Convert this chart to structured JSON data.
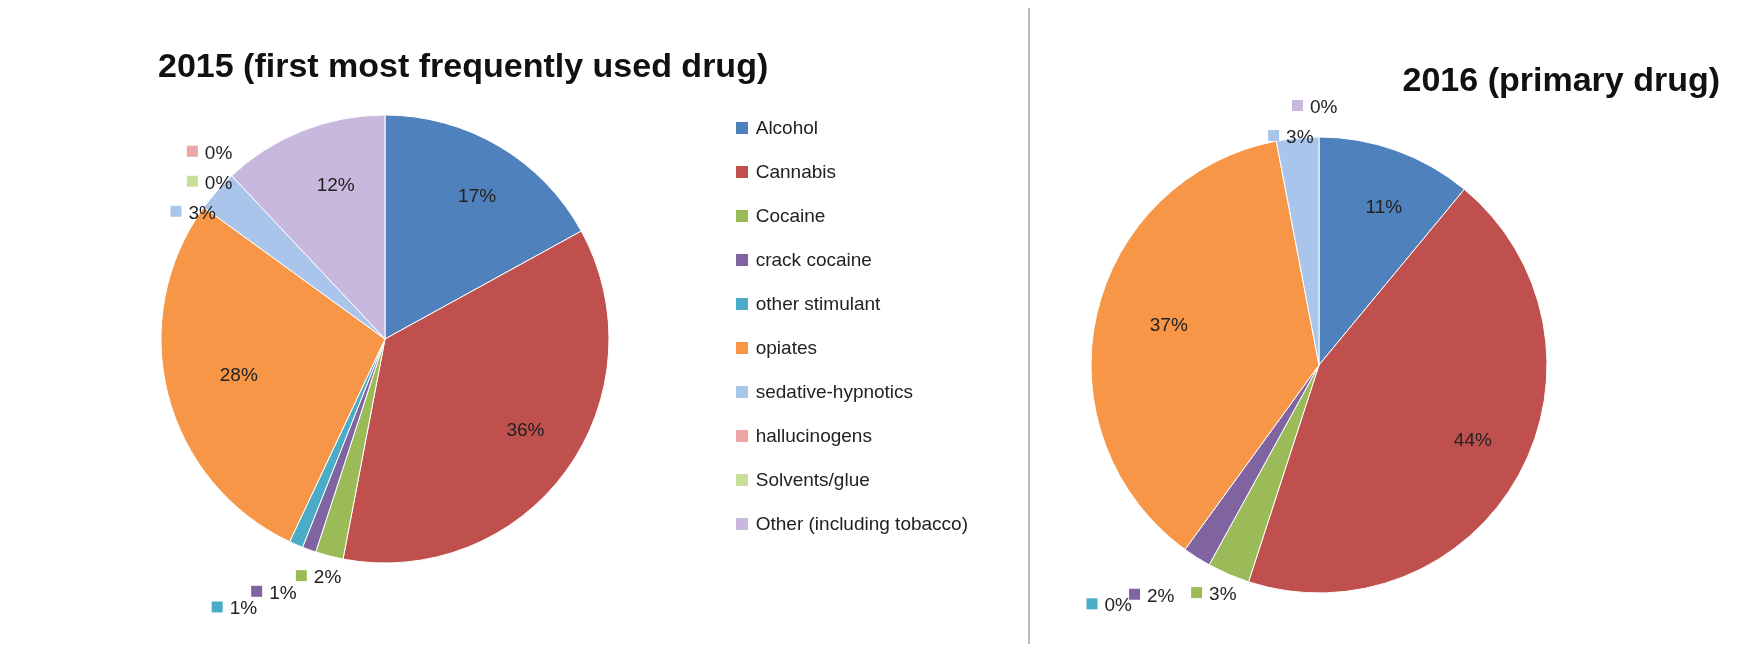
{
  "chart_data": [
    {
      "type": "pie",
      "title": "2015 (first most frequently used drug)",
      "categories": [
        "Alcohol",
        "Cannabis",
        "Cocaine",
        "crack cocaine",
        "other stimulant",
        "opiates",
        "sedative-hypnotics",
        "hallucinogens",
        "Solvents/glue",
        "Other (including tobacco)"
      ],
      "values": [
        17,
        36,
        2,
        1,
        1,
        28,
        3,
        0,
        0,
        12
      ],
      "value_labels": [
        "17%",
        "36%",
        "2%",
        "1%",
        "1%",
        "28%",
        "3%",
        "0%",
        "0%",
        "12%"
      ],
      "colors": [
        "#4f81bd",
        "#c0504d",
        "#9bbb59",
        "#8064a2",
        "#4bacc6",
        "#f79646",
        "#a9c5eb",
        "#eba6a5",
        "#c8df9c",
        "#c9b8dd"
      ],
      "legend": "right"
    },
    {
      "type": "pie",
      "title": "2016 (primary drug)",
      "categories": [
        null,
        null,
        null,
        null,
        null,
        null,
        null,
        null
      ],
      "values": [
        11,
        44,
        3,
        2,
        0,
        37,
        3,
        0
      ],
      "value_labels": [
        "11%",
        "44%",
        "3%",
        "2%",
        "0%",
        "37%",
        "3%",
        "0%"
      ],
      "colors": [
        "#4f81bd",
        "#c0504d",
        "#9bbb59",
        "#8064a2",
        "#4bacc6",
        "#f79646",
        "#a9c5eb",
        "#c9b8dd"
      ],
      "legend": false
    }
  ]
}
